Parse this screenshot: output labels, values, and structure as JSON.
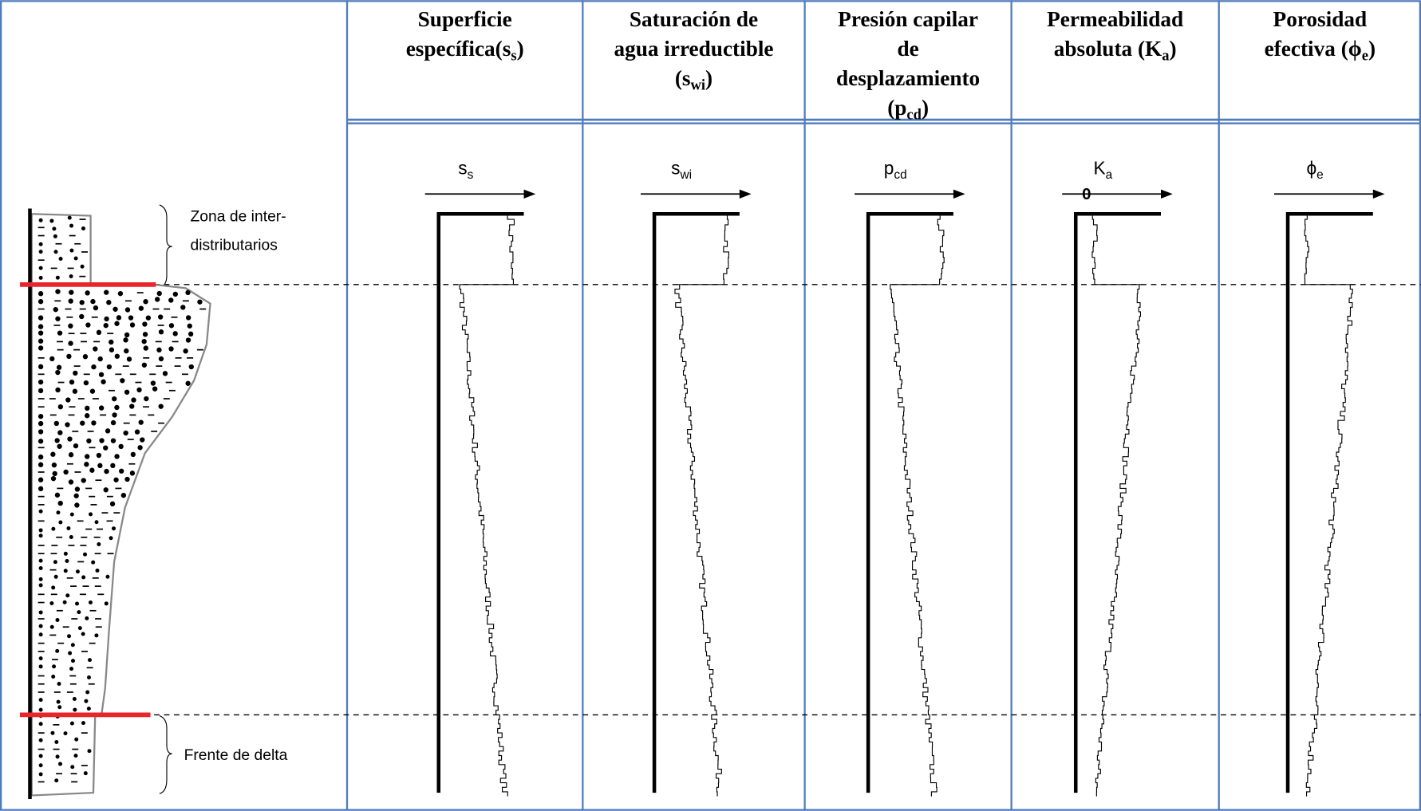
{
  "columns": [
    {
      "title": [
        [
          {
            "text": "Superficie"
          }
        ],
        [
          {
            "text": "específica(s"
          },
          {
            "sub": "s"
          },
          {
            "text": ")"
          }
        ]
      ],
      "label": [
        {
          "text": "s"
        },
        {
          "sub": "s"
        }
      ]
    },
    {
      "title": [
        [
          {
            "text": "Saturación de"
          }
        ],
        [
          {
            "text": "agua irreductible"
          }
        ],
        [
          {
            "text": "(s"
          },
          {
            "sub": "wi"
          },
          {
            "text": ")"
          }
        ]
      ],
      "label": [
        {
          "text": "s"
        },
        {
          "sub": "wi"
        }
      ]
    },
    {
      "title": [
        [
          {
            "text": "Presión capilar"
          }
        ],
        [
          {
            "text": "de"
          }
        ],
        [
          {
            "text": "desplazamiento"
          }
        ],
        [
          {
            "text": "(p"
          },
          {
            "sub": "cd"
          },
          {
            "text": ")"
          }
        ]
      ],
      "label": [
        {
          "text": "p"
        },
        {
          "sub": "cd"
        }
      ]
    },
    {
      "title": [
        [
          {
            "text": "Permeabilidad"
          }
        ],
        [
          {
            "text": "absoluta (K"
          },
          {
            "sub": "a"
          },
          {
            "text": ")"
          }
        ]
      ],
      "label": [
        {
          "text": "K"
        },
        {
          "sub": "a"
        }
      ],
      "origin": "0"
    },
    {
      "title": [
        [
          {
            "text": "Porosidad"
          }
        ],
        [
          {
            "text": "efectiva (ϕ"
          },
          {
            "sub": "e"
          },
          {
            "text": ")"
          }
        ]
      ],
      "label": [
        {
          "text": "ϕ"
        },
        {
          "sub": "e"
        }
      ]
    }
  ],
  "annotations": {
    "upper": [
      "Zona de inter-",
      "distributarios"
    ],
    "lower": "Frente de delta"
  }
}
